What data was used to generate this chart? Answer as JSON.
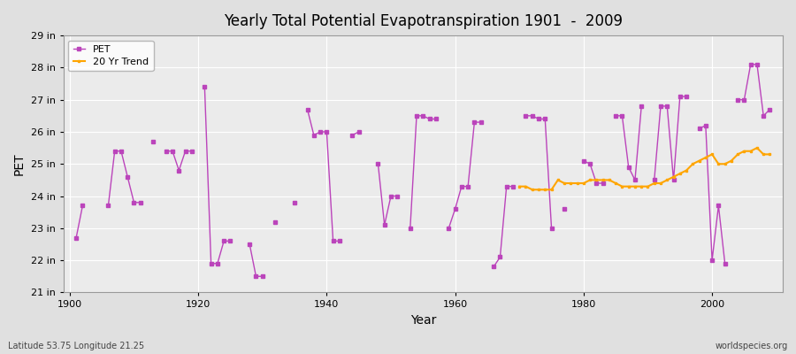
{
  "title": "Yearly Total Potential Evapotranspiration 1901  -  2009",
  "xlabel": "Year",
  "ylabel": "PET",
  "subtitle_left": "Latitude 53.75 Longitude 21.25",
  "subtitle_right": "worldspecies.org",
  "ylim": [
    21,
    29
  ],
  "yticks": [
    21,
    22,
    23,
    24,
    25,
    26,
    27,
    28,
    29
  ],
  "ytick_labels": [
    "21 in",
    "22 in",
    "23 in",
    "24 in",
    "25 in",
    "26 in",
    "27 in",
    "28 in",
    "29 in"
  ],
  "xlim": [
    1899,
    2011
  ],
  "pet_color": "#BB44BB",
  "trend_color": "#FFA500",
  "bg_color": "#E0E0E0",
  "plot_bg_color": "#EBEBEB",
  "grid_color": "#FFFFFF",
  "pet_segments": [
    [
      [
        1901,
        22.7
      ],
      [
        1902,
        23.7
      ]
    ],
    [
      [
        1906,
        23.7
      ],
      [
        1907,
        25.4
      ],
      [
        1908,
        25.4
      ],
      [
        1909,
        24.6
      ],
      [
        1910,
        23.8
      ],
      [
        1911,
        23.8
      ]
    ],
    [
      [
        1913,
        25.7
      ]
    ],
    [
      [
        1915,
        25.4
      ],
      [
        1916,
        25.4
      ],
      [
        1917,
        24.8
      ],
      [
        1918,
        25.4
      ],
      [
        1919,
        25.4
      ]
    ],
    [
      [
        1921,
        27.4
      ],
      [
        1922,
        21.9
      ],
      [
        1923,
        21.9
      ],
      [
        1924,
        22.6
      ],
      [
        1925,
        22.6
      ]
    ],
    [
      [
        1928,
        22.5
      ],
      [
        1929,
        21.5
      ],
      [
        1930,
        21.5
      ]
    ],
    [
      [
        1932,
        23.2
      ]
    ],
    [
      [
        1935,
        23.8
      ]
    ],
    [
      [
        1937,
        26.7
      ],
      [
        1938,
        25.9
      ],
      [
        1939,
        26.0
      ],
      [
        1940,
        26.0
      ],
      [
        1941,
        22.6
      ],
      [
        1942,
        22.6
      ]
    ],
    [
      [
        1944,
        25.9
      ],
      [
        1945,
        26.0
      ]
    ],
    [
      [
        1948,
        25.0
      ],
      [
        1949,
        23.1
      ],
      [
        1950,
        24.0
      ],
      [
        1951,
        24.0
      ]
    ],
    [
      [
        1953,
        23.0
      ],
      [
        1954,
        26.5
      ],
      [
        1955,
        26.5
      ],
      [
        1956,
        26.4
      ],
      [
        1957,
        26.4
      ]
    ],
    [
      [
        1959,
        23.0
      ],
      [
        1960,
        23.6
      ],
      [
        1961,
        24.3
      ],
      [
        1962,
        24.3
      ],
      [
        1963,
        26.3
      ],
      [
        1964,
        26.3
      ]
    ],
    [
      [
        1966,
        21.8
      ],
      [
        1967,
        22.1
      ],
      [
        1968,
        24.3
      ],
      [
        1969,
        24.3
      ]
    ],
    [
      [
        1971,
        26.5
      ],
      [
        1972,
        26.5
      ],
      [
        1973,
        26.4
      ],
      [
        1974,
        26.4
      ],
      [
        1975,
        23.0
      ]
    ],
    [
      [
        1977,
        23.6
      ]
    ],
    [
      [
        1980,
        25.1
      ],
      [
        1981,
        25.0
      ],
      [
        1982,
        24.4
      ],
      [
        1983,
        24.4
      ]
    ],
    [
      [
        1985,
        26.5
      ],
      [
        1986,
        26.5
      ],
      [
        1987,
        24.9
      ],
      [
        1988,
        24.5
      ],
      [
        1989,
        26.8
      ]
    ],
    [
      [
        1991,
        24.5
      ],
      [
        1992,
        26.8
      ],
      [
        1993,
        26.8
      ],
      [
        1994,
        24.5
      ],
      [
        1995,
        27.1
      ],
      [
        1996,
        27.1
      ]
    ],
    [
      [
        1998,
        26.1
      ],
      [
        1999,
        26.2
      ],
      [
        2000,
        22.0
      ],
      [
        2001,
        23.7
      ],
      [
        2002,
        21.9
      ]
    ],
    [
      [
        2004,
        27.0
      ],
      [
        2005,
        27.0
      ],
      [
        2006,
        28.1
      ],
      [
        2007,
        28.1
      ],
      [
        2008,
        26.5
      ],
      [
        2009,
        26.7
      ]
    ]
  ],
  "trend_years": [
    1970,
    1971,
    1972,
    1973,
    1974,
    1975,
    1976,
    1977,
    1978,
    1979,
    1980,
    1981,
    1982,
    1983,
    1984,
    1985,
    1986,
    1987,
    1988,
    1989,
    1990,
    1991,
    1992,
    1993,
    1994,
    1995,
    1996,
    1997,
    1998,
    1999,
    2000,
    2001,
    2002,
    2003,
    2004,
    2005,
    2006,
    2007,
    2008,
    2009
  ],
  "trend_values": [
    24.3,
    24.3,
    24.2,
    24.2,
    24.2,
    24.2,
    24.5,
    24.4,
    24.4,
    24.4,
    24.4,
    24.5,
    24.5,
    24.5,
    24.5,
    24.4,
    24.3,
    24.3,
    24.3,
    24.3,
    24.3,
    24.4,
    24.4,
    24.5,
    24.6,
    24.7,
    24.8,
    25.0,
    25.1,
    25.2,
    25.3,
    25.0,
    25.0,
    25.1,
    25.3,
    25.4,
    25.4,
    25.5,
    25.3,
    25.3
  ]
}
